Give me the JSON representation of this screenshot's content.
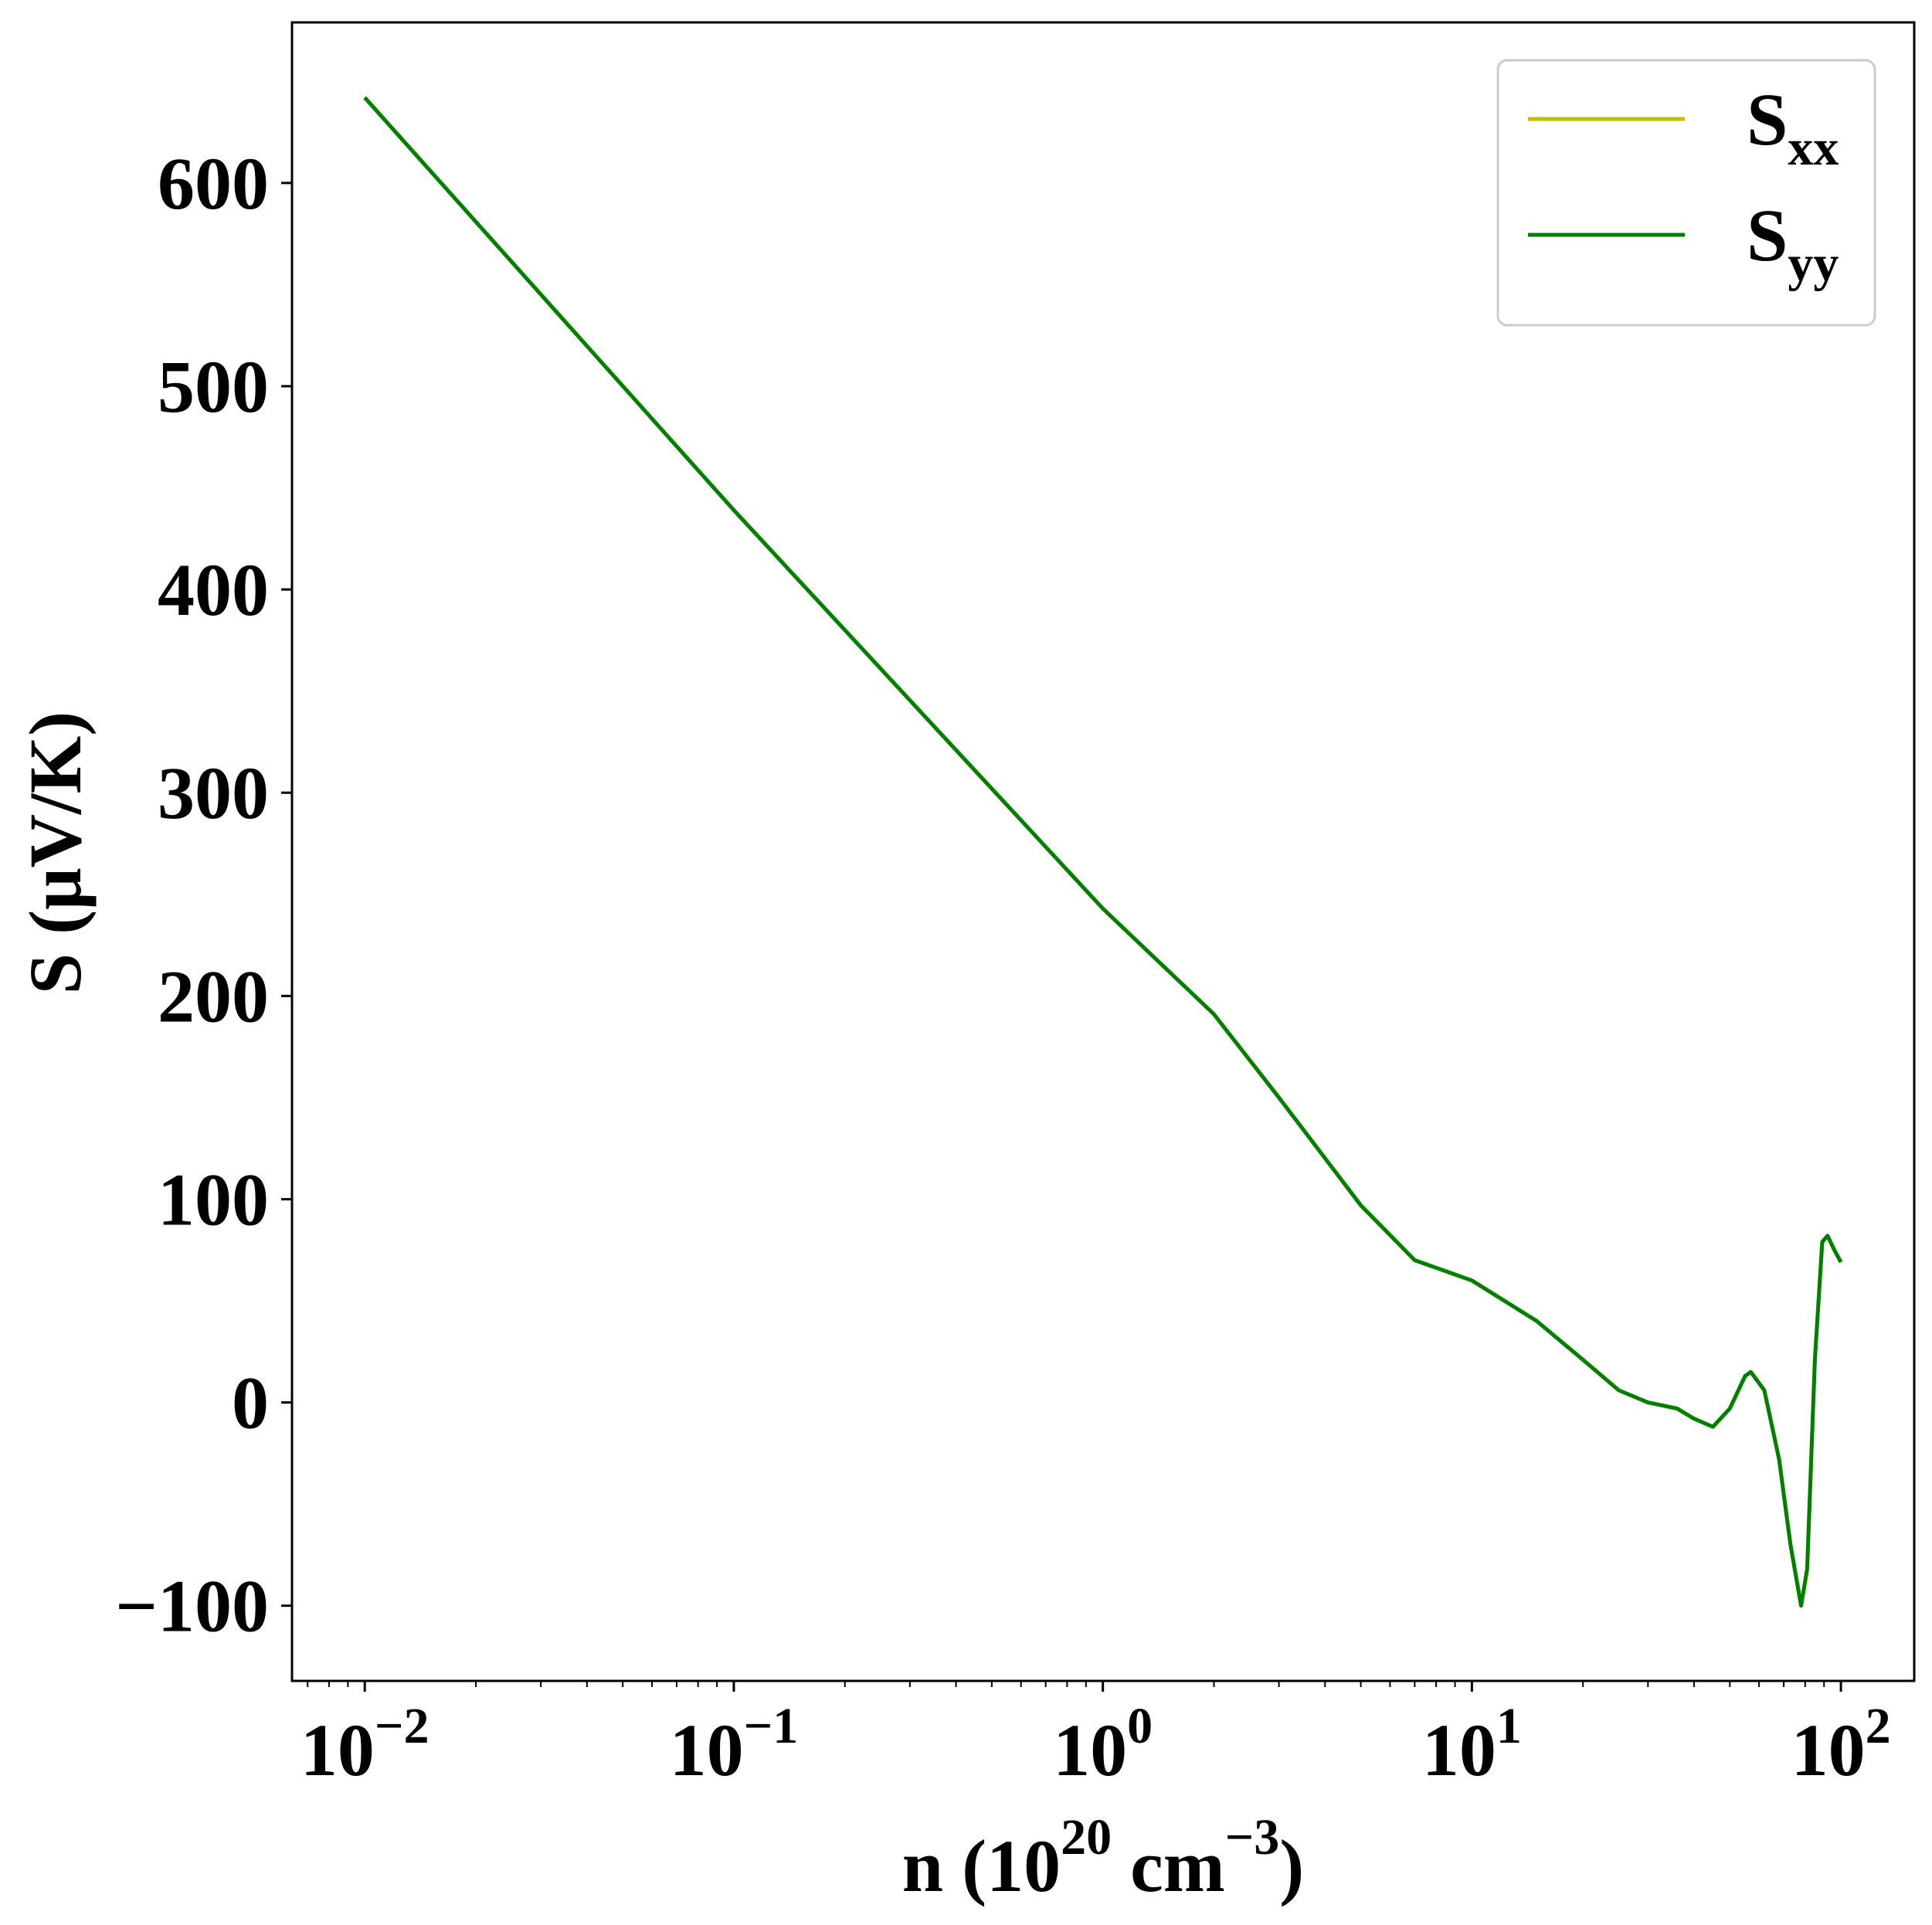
{
  "chart_data": {
    "type": "line",
    "xlabel": [
      "n (10",
      "20",
      " cm",
      "−3",
      ")"
    ],
    "ylabel": "S (μV/K)",
    "x": [
      0.01,
      0.1,
      1,
      2,
      3,
      5,
      7,
      10,
      15,
      20,
      25,
      30,
      36,
      40,
      45,
      50,
      55,
      57,
      62,
      68,
      73,
      78,
      81,
      85,
      89,
      92,
      96,
      100
    ],
    "series": [
      {
        "name": "Sxx",
        "color": "#bfbf00",
        "values": [
          642,
          439,
          243,
          191,
          150,
          97,
          70,
          60,
          40,
          21,
          6,
          0,
          -3,
          -8,
          -12,
          -3,
          13,
          15,
          6,
          -28,
          -70,
          -100,
          -82,
          21,
          79,
          82,
          75,
          69
        ]
      },
      {
        "name": "Syy",
        "color": "#008000",
        "values": [
          642,
          439,
          243,
          191,
          150,
          97,
          70,
          60,
          40,
          21,
          6,
          0,
          -3,
          -8,
          -12,
          -3,
          13,
          15,
          6,
          -28,
          -70,
          -100,
          -82,
          21,
          79,
          82,
          75,
          69
        ]
      }
    ],
    "xscale": "log",
    "xlim": [
      0.00635,
      158
    ],
    "ylim": [
      -137,
      679
    ],
    "xticks": [
      {
        "value": 0.01,
        "label": "10−2"
      },
      {
        "value": 0.1,
        "label": "10−1"
      },
      {
        "value": 1,
        "label": "100"
      },
      {
        "value": 10,
        "label": "101"
      },
      {
        "value": 100,
        "label": "102"
      }
    ],
    "yticks": [
      {
        "value": -100,
        "label": "−100"
      },
      0,
      100,
      200,
      300,
      400,
      500,
      600
    ],
    "minor_ticks": true,
    "grid": false,
    "legend": "upper right"
  }
}
